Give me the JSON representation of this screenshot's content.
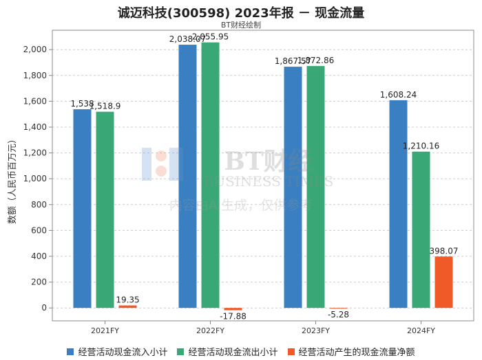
{
  "header": {
    "title": "诚迈科技(300598) 2023年报 － 现金流量",
    "subtitle": "BT财经绘制"
  },
  "watermark": {
    "brand_cn": "BT财经",
    "brand_en": "BUSINESS TIMES",
    "note": "内容由AI生成，仅供参考"
  },
  "colors": {
    "series": [
      "#3a7fc1",
      "#3aa876",
      "#f05a28"
    ],
    "grid": "#cccccc",
    "axis": "#888888"
  },
  "chart_data": {
    "type": "bar",
    "title": "诚迈科技(300598) 2023年报 － 现金流量",
    "subtitle": "BT财经绘制",
    "ylabel": "数额（人民币百万元）",
    "xlabel": "",
    "categories": [
      "2021FY",
      "2022FY",
      "2023FY",
      "2024FY"
    ],
    "ylim": [
      -100,
      2150
    ],
    "yticks": [
      0,
      200,
      400,
      600,
      800,
      1000,
      1200,
      1400,
      1600,
      1800,
      2000
    ],
    "ytick_labels": [
      "0",
      "200",
      "400",
      "600",
      "800",
      "1,000",
      "1,200",
      "1,400",
      "1,600",
      "1,800",
      "2,000"
    ],
    "grid": true,
    "legend": "bottom",
    "series": [
      {
        "name": "经营活动现金流入小计",
        "values": [
          1538,
          2038.07,
          1867.57,
          1608.24
        ],
        "labels": [
          "1,538",
          "2,038.07",
          "1,867.57",
          "1,608.24"
        ]
      },
      {
        "name": "经营活动现金流出小计",
        "values": [
          1518.9,
          2055.95,
          1872.86,
          1210.16
        ],
        "labels": [
          "1,518.9",
          "2,055.95",
          "1,872.86",
          "1,210.16"
        ]
      },
      {
        "name": "经营活动产生的现金流量净额",
        "values": [
          19.35,
          -17.88,
          -5.28,
          398.07
        ],
        "labels": [
          "19.35",
          "-17.88",
          "-5.28",
          "398.07"
        ]
      }
    ]
  }
}
